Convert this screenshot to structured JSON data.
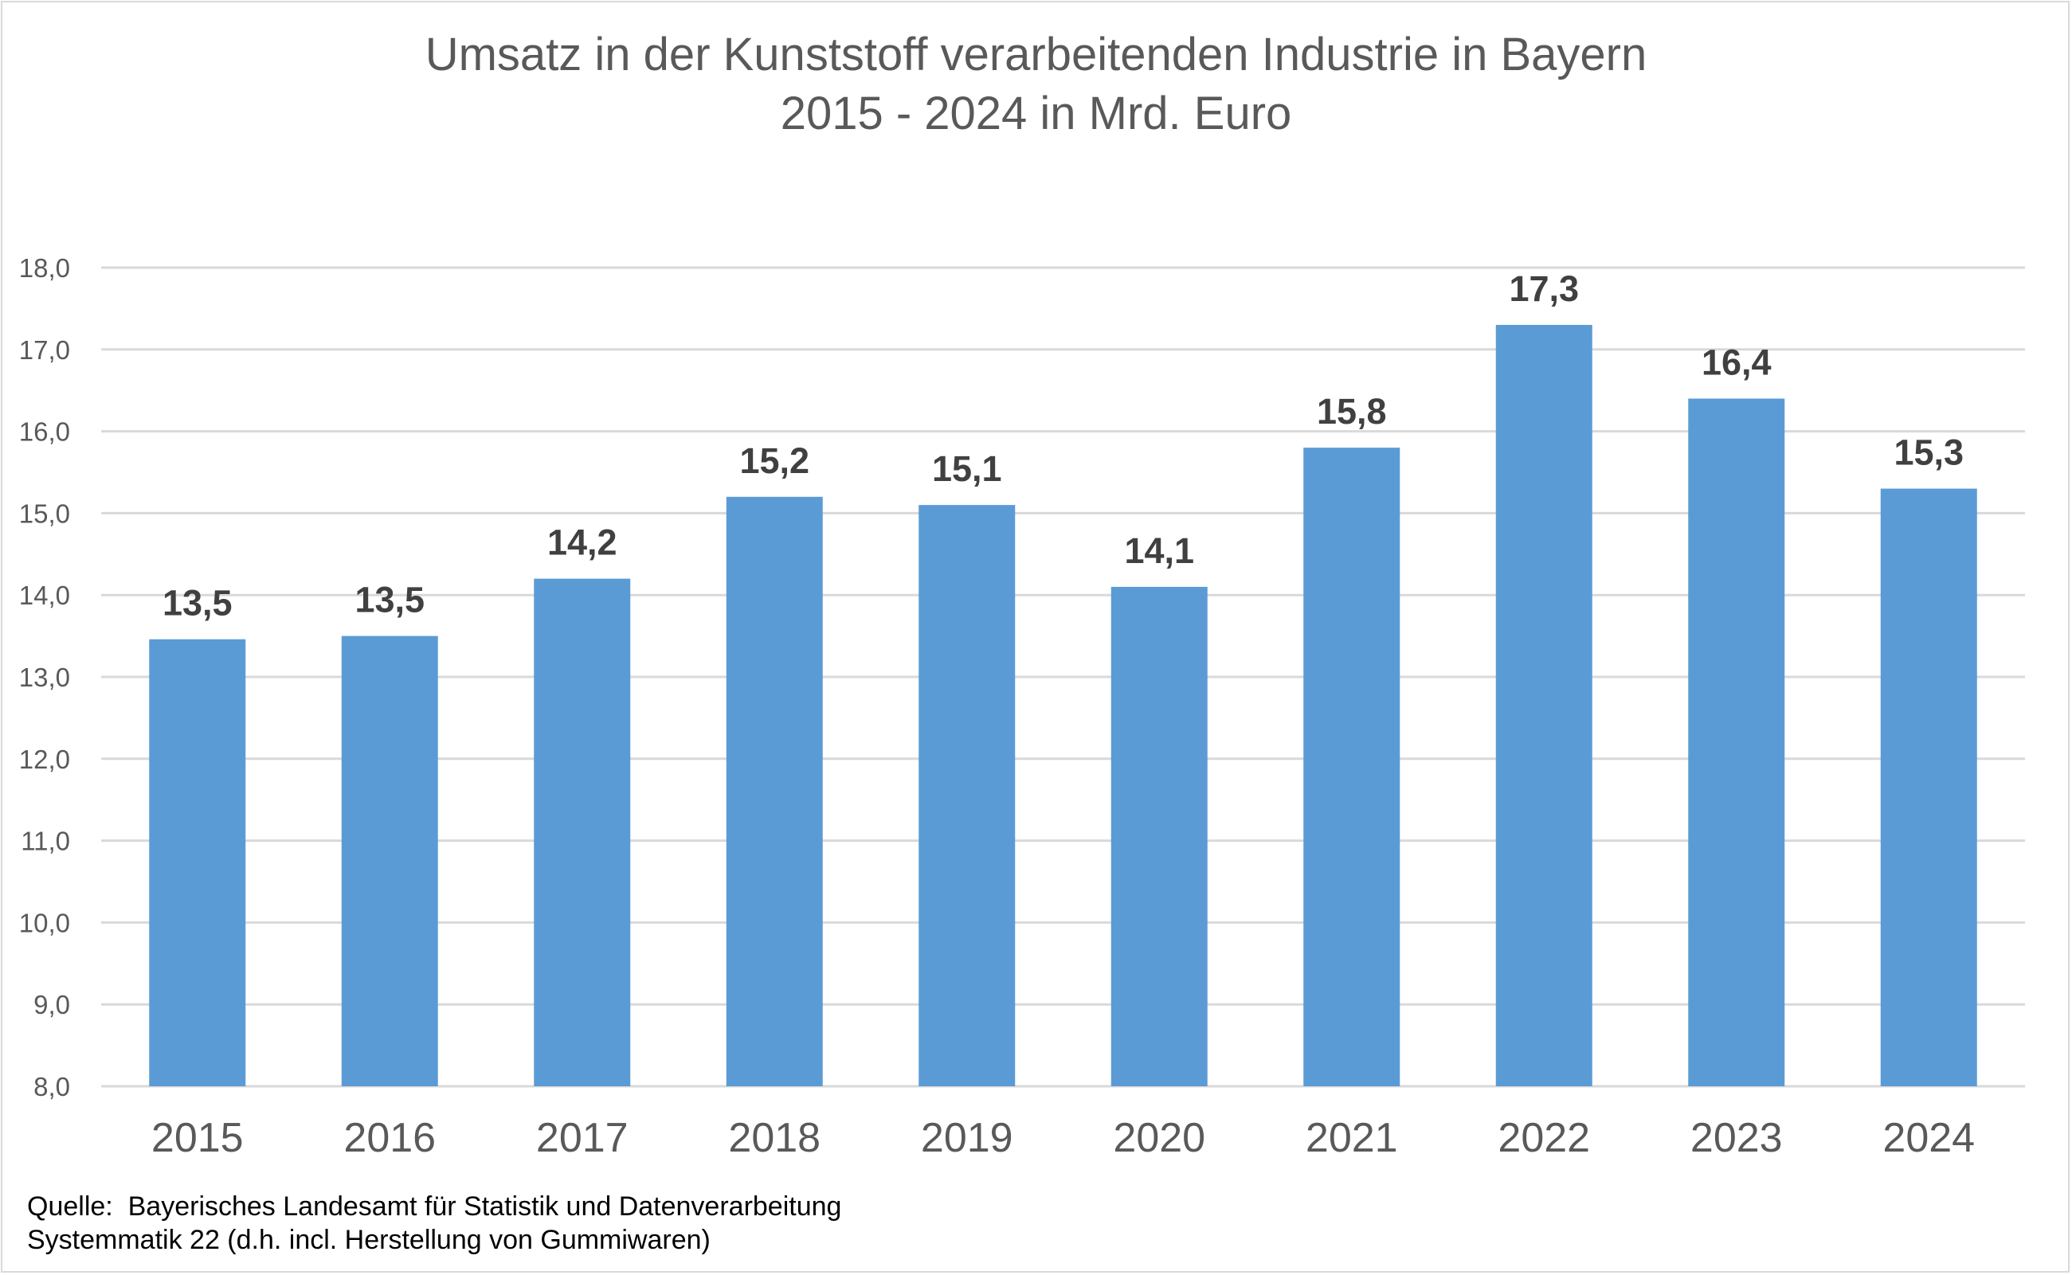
{
  "chart_data": {
    "type": "bar",
    "title": "Umsatz in der Kunststoff verarbeitenden Industrie in Bayern",
    "subtitle": "2015 - 2024 in Mrd. Euro",
    "xlabel": "",
    "ylabel": "",
    "categories": [
      "2015",
      "2016",
      "2017",
      "2018",
      "2019",
      "2020",
      "2021",
      "2022",
      "2023",
      "2024"
    ],
    "values": [
      13.46,
      13.5,
      14.2,
      15.2,
      15.1,
      14.1,
      15.8,
      17.3,
      16.4,
      15.3
    ],
    "data_labels": [
      "13,5",
      "13,5",
      "14,2",
      "15,2",
      "15,1",
      "14,1",
      "15,8",
      "17,3",
      "16,4",
      "15,3"
    ],
    "ylim": [
      8.0,
      18.0
    ],
    "yticks": [
      8.0,
      9.0,
      10.0,
      11.0,
      12.0,
      13.0,
      14.0,
      15.0,
      16.0,
      17.0,
      18.0
    ],
    "ytick_labels": [
      "8,0",
      "9,0",
      "10,0",
      "11,0",
      "12,0",
      "13,0",
      "14,0",
      "15,0",
      "16,0",
      "17,0",
      "18,0"
    ],
    "grid": true,
    "legend": "none",
    "colors": {
      "bar": "#5b9bd5",
      "grid": "#d9d9d9",
      "axis_text": "#595959",
      "data_label": "#404040"
    }
  },
  "source": {
    "line1": "Quelle:  Bayerisches Landesamt für Statistik und Datenverarbeitung",
    "line2": "Systemmatik 22 (d.h. incl. Herstellung von Gummiwaren)"
  }
}
